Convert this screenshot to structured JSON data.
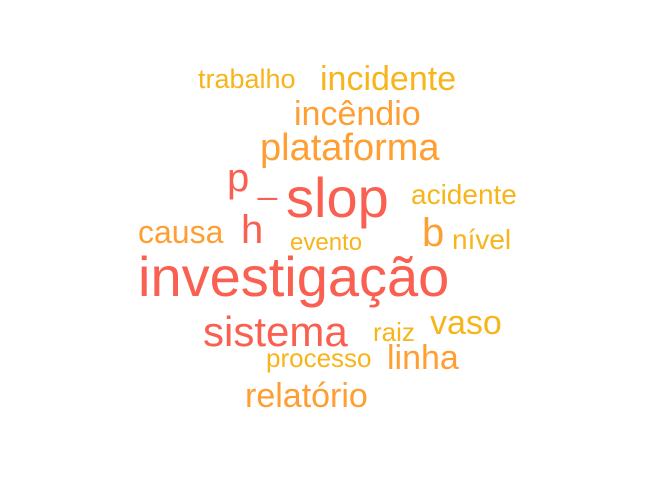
{
  "word_cloud": {
    "colors": {
      "primary": "#fa6052",
      "secondary": "#ff9f33",
      "tertiary": "#f7b51c"
    },
    "words": {
      "investigacao": {
        "text": "investigação",
        "color": "#fa6052"
      },
      "slop": {
        "text": "slop",
        "color": "#fa6052"
      },
      "p": {
        "text": "p",
        "color": "#fa6052"
      },
      "underscore": {
        "text": "_",
        "color": "#fa6052"
      },
      "h": {
        "text": "h",
        "color": "#fa6052"
      },
      "b": {
        "text": "b",
        "color": "#ff9f33"
      },
      "sistema": {
        "text": "sistema",
        "color": "#fa6052"
      },
      "plataforma": {
        "text": "plataforma",
        "color": "#ff9f33"
      },
      "incidente": {
        "text": "incidente",
        "color": "#f7b51c"
      },
      "incendio": {
        "text": "incêndio",
        "color": "#ff9f33"
      },
      "vaso": {
        "text": "vaso",
        "color": "#f7b51c"
      },
      "linha": {
        "text": "linha",
        "color": "#ff9f33"
      },
      "relatorio": {
        "text": "relatório",
        "color": "#ff9f33"
      },
      "causa": {
        "text": "causa",
        "color": "#ff9f33"
      },
      "acidente": {
        "text": "acidente",
        "color": "#f7b51c"
      },
      "nivel": {
        "text": "nível",
        "color": "#f7b51c"
      },
      "trabalho": {
        "text": "trabalho",
        "color": "#f7b51c"
      },
      "processo": {
        "text": "processo",
        "color": "#f7b51c"
      },
      "raiz": {
        "text": "raiz",
        "color": "#f7b51c"
      },
      "evento": {
        "text": "evento",
        "color": "#f7b51c"
      }
    }
  }
}
